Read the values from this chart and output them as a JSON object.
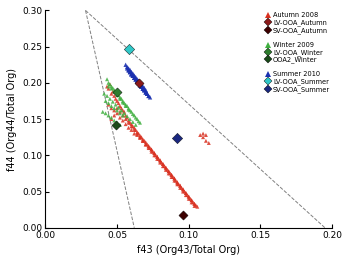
{
  "xlabel": "f43 (Org43/Total Org)",
  "ylabel": "f44 (Org44/Total Org)",
  "xlim": [
    0.0,
    0.2
  ],
  "ylim": [
    0.0,
    0.3
  ],
  "xticks": [
    0.0,
    0.05,
    0.1,
    0.15,
    0.2
  ],
  "yticks": [
    0.0,
    0.05,
    0.1,
    0.15,
    0.2,
    0.25,
    0.3
  ],
  "autumn_triangles": [
    [
      0.043,
      0.195
    ],
    [
      0.044,
      0.192
    ],
    [
      0.045,
      0.198
    ],
    [
      0.046,
      0.185
    ],
    [
      0.047,
      0.188
    ],
    [
      0.048,
      0.182
    ],
    [
      0.049,
      0.178
    ],
    [
      0.05,
      0.175
    ],
    [
      0.051,
      0.172
    ],
    [
      0.052,
      0.168
    ],
    [
      0.053,
      0.165
    ],
    [
      0.054,
      0.162
    ],
    [
      0.055,
      0.16
    ],
    [
      0.056,
      0.155
    ],
    [
      0.057,
      0.152
    ],
    [
      0.058,
      0.148
    ],
    [
      0.059,
      0.145
    ],
    [
      0.06,
      0.143
    ],
    [
      0.061,
      0.14
    ],
    [
      0.062,
      0.138
    ],
    [
      0.063,
      0.135
    ],
    [
      0.064,
      0.132
    ],
    [
      0.065,
      0.13
    ],
    [
      0.066,
      0.127
    ],
    [
      0.067,
      0.125
    ],
    [
      0.068,
      0.122
    ],
    [
      0.069,
      0.12
    ],
    [
      0.07,
      0.118
    ],
    [
      0.071,
      0.115
    ],
    [
      0.072,
      0.113
    ],
    [
      0.073,
      0.11
    ],
    [
      0.074,
      0.108
    ],
    [
      0.075,
      0.105
    ],
    [
      0.076,
      0.103
    ],
    [
      0.077,
      0.1
    ],
    [
      0.078,
      0.098
    ],
    [
      0.079,
      0.095
    ],
    [
      0.08,
      0.093
    ],
    [
      0.081,
      0.09
    ],
    [
      0.082,
      0.088
    ],
    [
      0.083,
      0.085
    ],
    [
      0.084,
      0.083
    ],
    [
      0.085,
      0.08
    ],
    [
      0.086,
      0.078
    ],
    [
      0.087,
      0.075
    ],
    [
      0.088,
      0.073
    ],
    [
      0.089,
      0.07
    ],
    [
      0.09,
      0.068
    ],
    [
      0.091,
      0.065
    ],
    [
      0.092,
      0.062
    ],
    [
      0.093,
      0.06
    ],
    [
      0.094,
      0.058
    ],
    [
      0.095,
      0.055
    ],
    [
      0.096,
      0.053
    ],
    [
      0.097,
      0.05
    ],
    [
      0.098,
      0.048
    ],
    [
      0.099,
      0.045
    ],
    [
      0.1,
      0.043
    ],
    [
      0.101,
      0.04
    ],
    [
      0.102,
      0.038
    ],
    [
      0.103,
      0.035
    ],
    [
      0.104,
      0.033
    ],
    [
      0.105,
      0.031
    ],
    [
      0.106,
      0.029
    ],
    [
      0.046,
      0.15
    ],
    [
      0.048,
      0.155
    ],
    [
      0.05,
      0.158
    ],
    [
      0.052,
      0.152
    ],
    [
      0.054,
      0.148
    ],
    [
      0.056,
      0.143
    ],
    [
      0.058,
      0.138
    ],
    [
      0.06,
      0.135
    ],
    [
      0.062,
      0.13
    ],
    [
      0.064,
      0.128
    ],
    [
      0.066,
      0.124
    ],
    [
      0.068,
      0.12
    ],
    [
      0.07,
      0.115
    ],
    [
      0.072,
      0.112
    ],
    [
      0.074,
      0.108
    ],
    [
      0.076,
      0.103
    ],
    [
      0.078,
      0.098
    ],
    [
      0.08,
      0.093
    ],
    [
      0.082,
      0.088
    ],
    [
      0.084,
      0.083
    ],
    [
      0.086,
      0.078
    ],
    [
      0.088,
      0.073
    ],
    [
      0.09,
      0.068
    ],
    [
      0.092,
      0.063
    ],
    [
      0.094,
      0.058
    ],
    [
      0.096,
      0.053
    ],
    [
      0.098,
      0.048
    ],
    [
      0.1,
      0.043
    ],
    [
      0.102,
      0.038
    ],
    [
      0.104,
      0.033
    ],
    [
      0.044,
      0.17
    ],
    [
      0.046,
      0.165
    ],
    [
      0.048,
      0.162
    ],
    [
      0.05,
      0.165
    ],
    [
      0.052,
      0.16
    ],
    [
      0.054,
      0.155
    ],
    [
      0.056,
      0.15
    ],
    [
      0.058,
      0.145
    ],
    [
      0.06,
      0.14
    ],
    [
      0.062,
      0.135
    ],
    [
      0.064,
      0.13
    ],
    [
      0.066,
      0.125
    ],
    [
      0.068,
      0.12
    ],
    [
      0.07,
      0.115
    ],
    [
      0.072,
      0.11
    ],
    [
      0.074,
      0.105
    ],
    [
      0.076,
      0.1
    ],
    [
      0.078,
      0.095
    ],
    [
      0.08,
      0.09
    ],
    [
      0.082,
      0.085
    ],
    [
      0.084,
      0.08
    ],
    [
      0.086,
      0.075
    ],
    [
      0.088,
      0.07
    ],
    [
      0.09,
      0.065
    ],
    [
      0.092,
      0.06
    ],
    [
      0.094,
      0.055
    ],
    [
      0.096,
      0.05
    ],
    [
      0.098,
      0.045
    ],
    [
      0.1,
      0.04
    ],
    [
      0.102,
      0.035
    ],
    [
      0.104,
      0.03
    ],
    [
      0.108,
      0.128
    ],
    [
      0.11,
      0.125
    ],
    [
      0.112,
      0.12
    ],
    [
      0.114,
      0.117
    ],
    [
      0.11,
      0.13
    ],
    [
      0.112,
      0.128
    ]
  ],
  "lv_ooa_autumn": [
    [
      0.065,
      0.2
    ]
  ],
  "sv_ooa_autumn": [
    [
      0.096,
      0.017
    ]
  ],
  "winter_triangles": [
    [
      0.043,
      0.205
    ],
    [
      0.044,
      0.2
    ],
    [
      0.045,
      0.198
    ],
    [
      0.046,
      0.195
    ],
    [
      0.047,
      0.193
    ],
    [
      0.048,
      0.19
    ],
    [
      0.049,
      0.188
    ],
    [
      0.05,
      0.185
    ],
    [
      0.051,
      0.183
    ],
    [
      0.052,
      0.18
    ],
    [
      0.053,
      0.178
    ],
    [
      0.054,
      0.175
    ],
    [
      0.055,
      0.172
    ],
    [
      0.056,
      0.17
    ],
    [
      0.057,
      0.168
    ],
    [
      0.058,
      0.165
    ],
    [
      0.059,
      0.162
    ],
    [
      0.06,
      0.16
    ],
    [
      0.061,
      0.157
    ],
    [
      0.062,
      0.155
    ],
    [
      0.063,
      0.152
    ],
    [
      0.064,
      0.15
    ],
    [
      0.065,
      0.147
    ],
    [
      0.066,
      0.145
    ],
    [
      0.044,
      0.195
    ],
    [
      0.046,
      0.192
    ],
    [
      0.048,
      0.188
    ],
    [
      0.05,
      0.183
    ],
    [
      0.052,
      0.178
    ],
    [
      0.054,
      0.173
    ],
    [
      0.056,
      0.168
    ],
    [
      0.058,
      0.163
    ],
    [
      0.041,
      0.185
    ],
    [
      0.043,
      0.182
    ],
    [
      0.045,
      0.178
    ],
    [
      0.047,
      0.174
    ],
    [
      0.049,
      0.17
    ],
    [
      0.051,
      0.166
    ],
    [
      0.053,
      0.162
    ],
    [
      0.055,
      0.158
    ],
    [
      0.057,
      0.154
    ],
    [
      0.059,
      0.15
    ],
    [
      0.061,
      0.146
    ],
    [
      0.063,
      0.142
    ],
    [
      0.042,
      0.175
    ],
    [
      0.044,
      0.172
    ],
    [
      0.046,
      0.168
    ],
    [
      0.048,
      0.165
    ],
    [
      0.05,
      0.162
    ],
    [
      0.052,
      0.158
    ],
    [
      0.054,
      0.155
    ],
    [
      0.04,
      0.16
    ],
    [
      0.042,
      0.158
    ],
    [
      0.044,
      0.155
    ],
    [
      0.046,
      0.152
    ],
    [
      0.048,
      0.148
    ],
    [
      0.05,
      0.145
    ],
    [
      0.052,
      0.142
    ]
  ],
  "lv_ooa_winter": [
    [
      0.05,
      0.188
    ]
  ],
  "ooa2_winter": [
    [
      0.049,
      0.142
    ]
  ],
  "summer_triangles": [
    [
      0.056,
      0.225
    ],
    [
      0.057,
      0.222
    ],
    [
      0.058,
      0.22
    ],
    [
      0.059,
      0.218
    ],
    [
      0.06,
      0.215
    ],
    [
      0.061,
      0.213
    ],
    [
      0.062,
      0.21
    ],
    [
      0.063,
      0.208
    ],
    [
      0.064,
      0.205
    ],
    [
      0.065,
      0.203
    ],
    [
      0.066,
      0.2
    ],
    [
      0.067,
      0.198
    ],
    [
      0.068,
      0.195
    ],
    [
      0.069,
      0.193
    ],
    [
      0.07,
      0.19
    ],
    [
      0.057,
      0.22
    ],
    [
      0.058,
      0.217
    ],
    [
      0.059,
      0.215
    ],
    [
      0.06,
      0.212
    ],
    [
      0.061,
      0.21
    ],
    [
      0.062,
      0.207
    ],
    [
      0.063,
      0.205
    ],
    [
      0.064,
      0.202
    ],
    [
      0.065,
      0.2
    ],
    [
      0.066,
      0.197
    ],
    [
      0.067,
      0.195
    ],
    [
      0.068,
      0.192
    ],
    [
      0.069,
      0.19
    ],
    [
      0.07,
      0.187
    ],
    [
      0.071,
      0.185
    ],
    [
      0.058,
      0.218
    ],
    [
      0.059,
      0.215
    ],
    [
      0.06,
      0.212
    ],
    [
      0.061,
      0.21
    ],
    [
      0.062,
      0.207
    ],
    [
      0.063,
      0.205
    ],
    [
      0.064,
      0.202
    ],
    [
      0.065,
      0.2
    ],
    [
      0.066,
      0.197
    ],
    [
      0.067,
      0.195
    ],
    [
      0.068,
      0.192
    ],
    [
      0.069,
      0.19
    ],
    [
      0.07,
      0.187
    ],
    [
      0.071,
      0.185
    ],
    [
      0.072,
      0.182
    ],
    [
      0.059,
      0.215
    ],
    [
      0.06,
      0.212
    ],
    [
      0.061,
      0.21
    ],
    [
      0.062,
      0.207
    ],
    [
      0.063,
      0.205
    ],
    [
      0.064,
      0.202
    ],
    [
      0.065,
      0.2
    ],
    [
      0.066,
      0.197
    ],
    [
      0.067,
      0.195
    ],
    [
      0.068,
      0.192
    ],
    [
      0.069,
      0.19
    ],
    [
      0.07,
      0.187
    ],
    [
      0.071,
      0.185
    ],
    [
      0.072,
      0.182
    ],
    [
      0.073,
      0.18
    ]
  ],
  "lv_ooa_summer": [
    [
      0.058,
      0.247
    ]
  ],
  "sv_ooa_summer": [
    [
      0.092,
      0.124
    ]
  ],
  "dashed_line1_x": [
    0.028,
    0.062
  ],
  "dashed_line1_y": [
    0.3,
    0.0
  ],
  "dashed_line2_x": [
    0.028,
    0.195
  ],
  "dashed_line2_y": [
    0.3,
    0.0
  ],
  "colors": {
    "autumn_tri": "#D93020",
    "lv_ooa_autumn": "#8B1A1A",
    "sv_ooa_autumn": "#3D0000",
    "winter_tri": "#40B040",
    "lv_ooa_winter": "#2E7D2E",
    "ooa2_winter": "#1A4A1A",
    "summer_tri": "#1A30B0",
    "lv_ooa_summer": "#30C8C8",
    "sv_ooa_summer": "#1A2880"
  },
  "legend_items": [
    {
      "label": "Autumn 2008",
      "color": "#D93020",
      "marker": "^",
      "ms": 4
    },
    {
      "label": "LV-OOA_Autumn",
      "color": "#8B1A1A",
      "marker": "D",
      "ms": 4
    },
    {
      "label": "SV-OOA_Autumn",
      "color": "#3D0000",
      "marker": "D",
      "ms": 4
    },
    {
      "label": "Winter 2009",
      "color": "#40B040",
      "marker": "^",
      "ms": 4
    },
    {
      "label": "LV-OOA_Winter",
      "color": "#2E7D2E",
      "marker": "D",
      "ms": 4
    },
    {
      "label": "OOA2_Winter",
      "color": "#1A4A1A",
      "marker": "D",
      "ms": 4
    },
    {
      "label": "Summer 2010",
      "color": "#1A30B0",
      "marker": "^",
      "ms": 4
    },
    {
      "label": "LV-OOA_Summer",
      "color": "#30C8C8",
      "marker": "D",
      "ms": 4
    },
    {
      "label": "SV-OOA_Summer",
      "color": "#1A2880",
      "marker": "D",
      "ms": 4
    }
  ]
}
